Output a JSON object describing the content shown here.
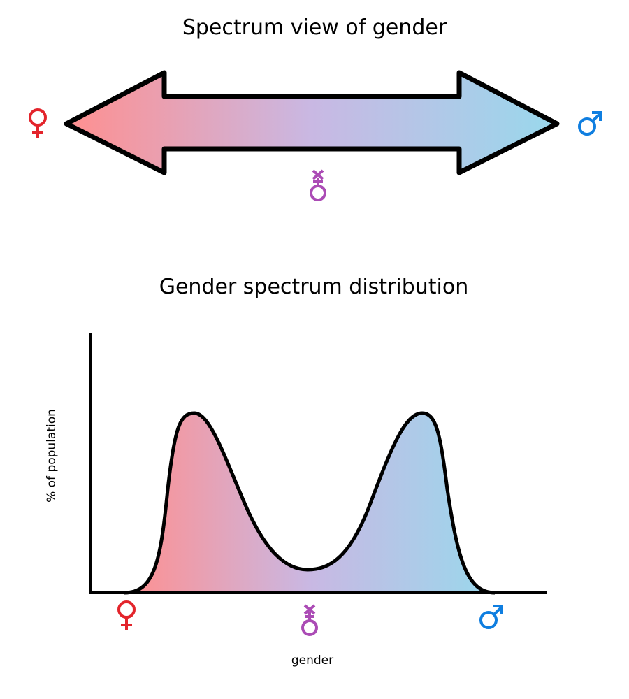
{
  "top_diagram": {
    "title": "Spectrum view of gender"
  },
  "bottom_diagram": {
    "title": "Gender spectrum distribution",
    "ylabel": "% of population",
    "xlabel": "gender"
  },
  "symbols": {
    "female": {
      "icon": "venus-icon",
      "color": "#e3242b"
    },
    "intersex": {
      "icon": "mercury-icon",
      "color": "#ab4bb5"
    },
    "male": {
      "icon": "mars-icon",
      "color": "#0f7ee0"
    }
  },
  "gradient": {
    "start": "#ff8f8f",
    "mid": "#c9b8e3",
    "end": "#99d8ec"
  }
}
